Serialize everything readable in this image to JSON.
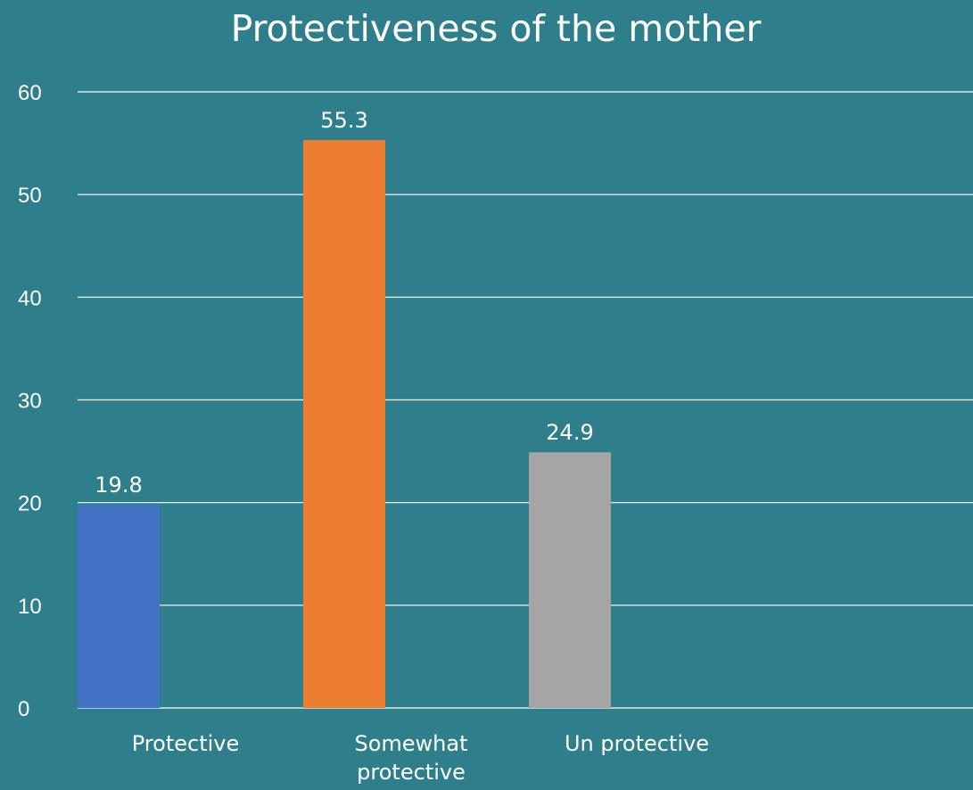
{
  "chart_data": {
    "type": "bar",
    "title": "Protectiveness of the mother",
    "xlabel": "",
    "ylabel": "",
    "categories": [
      "Protective",
      "Somewhat protective",
      "Un protective"
    ],
    "category_label_lines": [
      [
        "Protective"
      ],
      [
        "Somewhat",
        "protective"
      ],
      [
        "Un protective"
      ]
    ],
    "values": [
      19.8,
      55.3,
      24.9
    ],
    "value_labels": [
      "19.8",
      "55.3",
      "24.9"
    ],
    "bar_colors": [
      "#4472c4",
      "#ed7d31",
      "#a5a5a5"
    ],
    "ylim": [
      0,
      60
    ],
    "yticks": [
      0,
      10,
      20,
      30,
      40,
      50,
      60
    ],
    "grid": true,
    "legend": "none"
  },
  "colors": {
    "background": "#2e7f8b",
    "text": "#ffffff",
    "grid": "#ffffff"
  }
}
